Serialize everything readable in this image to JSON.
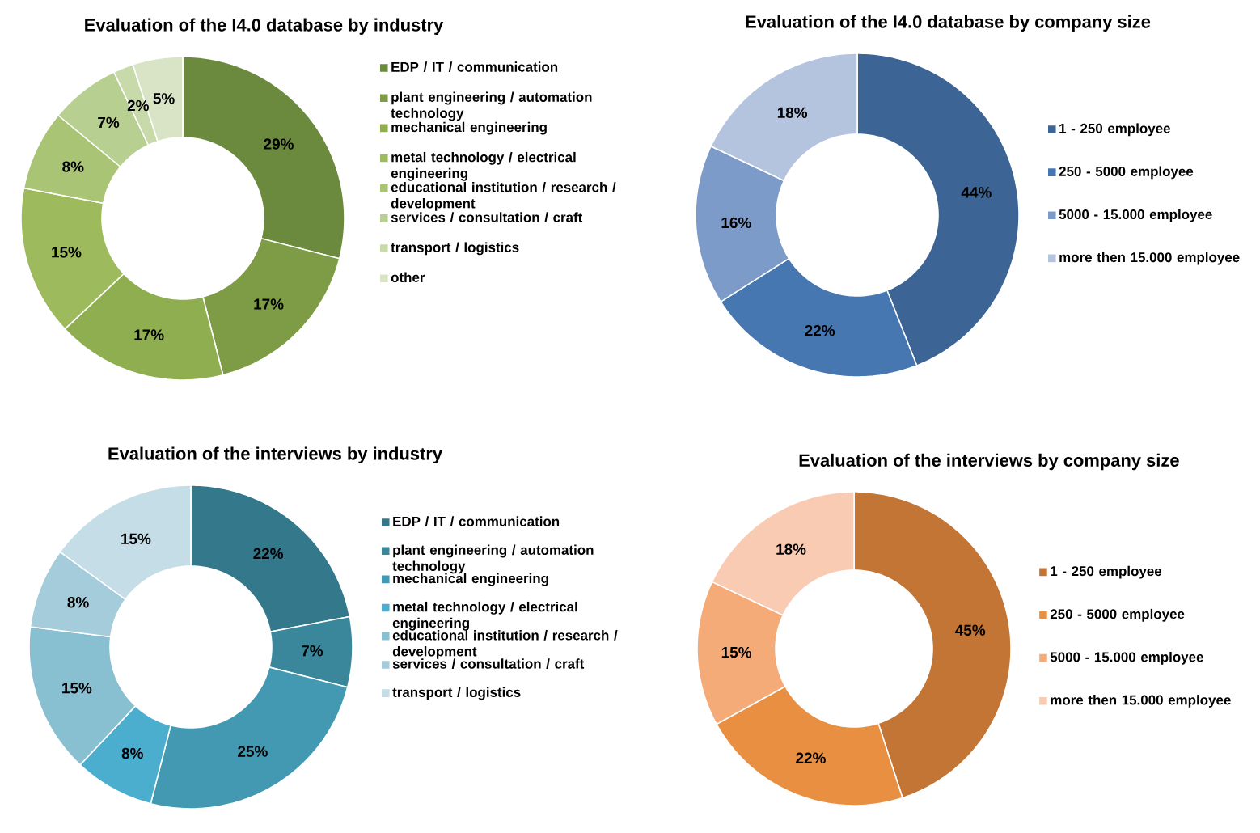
{
  "chart_data": [
    {
      "type": "donut",
      "title": "Evaluation of the I4.0 database by industry",
      "legend": "right",
      "categories": [
        "EDP / IT / communication",
        "plant engineering / automation technology",
        "mechanical engineering",
        "metal technology / electrical engineering",
        "educational institution / research / development",
        "services / consultation / craft",
        "transport / logistics",
        "other"
      ],
      "values": [
        29,
        17,
        17,
        15,
        8,
        7,
        2,
        5
      ],
      "value_labels": [
        "29%",
        "17%",
        "17%",
        "15%",
        "8%",
        "7%",
        "2%",
        "5%"
      ],
      "colors": [
        "#6b8a3e",
        "#7e9c45",
        "#8fae4f",
        "#9dbb5c",
        "#a9c475",
        "#b8cf92",
        "#c8daaa",
        "#d9e4c7"
      ]
    },
    {
      "type": "donut",
      "title": "Evaluation of the I4.0 database by company size",
      "legend": "right",
      "categories": [
        "1 - 250 employee",
        "250 - 5000 employee",
        "5000 - 15.000 employee",
        "more then 15.000 employee"
      ],
      "values": [
        44,
        22,
        16,
        18
      ],
      "value_labels": [
        "44%",
        "22%",
        "16%",
        "18%"
      ],
      "colors": [
        "#3c6494",
        "#4777b0",
        "#7d9bc9",
        "#b4c3de"
      ]
    },
    {
      "type": "donut",
      "title": "Evaluation of the interviews by industry",
      "legend": "right",
      "categories": [
        "EDP / IT / communication",
        "plant engineering / automation technology",
        "mechanical engineering",
        "metal technology / electrical engineering",
        "educational institution / research / development",
        "services / consultation / craft",
        "transport / logistics"
      ],
      "values": [
        22,
        7,
        25,
        8,
        15,
        8,
        15
      ],
      "value_labels": [
        "22%",
        "7%",
        "25%",
        "8%",
        "15%",
        "8%",
        "15%"
      ],
      "colors": [
        "#33788b",
        "#3a879c",
        "#4499b2",
        "#4baecf",
        "#88bfd1",
        "#a4ccda",
        "#c4dde6"
      ]
    },
    {
      "type": "donut",
      "title": "Evaluation of the interviews by company size",
      "legend": "right",
      "categories": [
        "1 - 250 employee",
        "250 - 5000 employee",
        "5000 - 15.000 employee",
        "more then 15.000 employee"
      ],
      "values": [
        45,
        22,
        15,
        18
      ],
      "value_labels": [
        "45%",
        "22%",
        "15%",
        "18%"
      ],
      "colors": [
        "#c27535",
        "#e88f42",
        "#f4ab78",
        "#f8cbb2"
      ]
    }
  ]
}
